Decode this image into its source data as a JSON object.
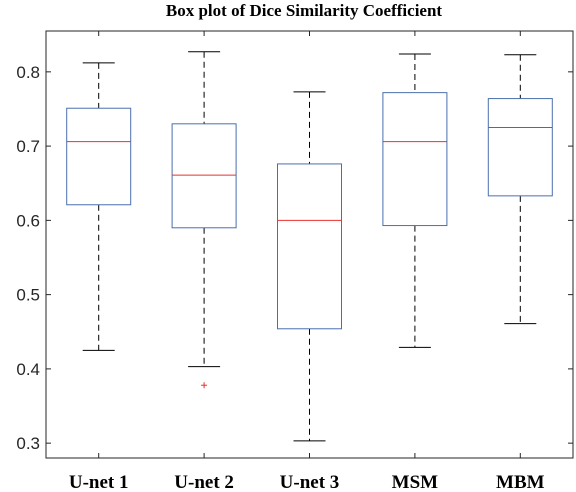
{
  "chart_data": {
    "type": "box",
    "title": "Box plot of Dice Similarity Coefficient",
    "xlabel": "",
    "ylabel": "",
    "ylim": [
      0.28,
      0.855
    ],
    "yticks": [
      0.3,
      0.4,
      0.5,
      0.6,
      0.7,
      0.8
    ],
    "ytick_labels": [
      "0.3",
      "0.4",
      "0.5",
      "0.6",
      "0.7",
      "0.8"
    ],
    "grid": false,
    "categories": [
      "U-net 1",
      "U-net 2",
      "U-net 3",
      "MSM",
      "MBM"
    ],
    "boxes": [
      {
        "name": "U-net 1",
        "min": 0.425,
        "q1": 0.621,
        "median": 0.706,
        "q3": 0.751,
        "max": 0.812,
        "outliers": []
      },
      {
        "name": "U-net 2",
        "min": 0.403,
        "q1": 0.59,
        "median": 0.661,
        "q3": 0.73,
        "max": 0.827,
        "outliers": [
          0.378
        ]
      },
      {
        "name": "U-net 3",
        "min": 0.303,
        "q1": 0.454,
        "median": 0.6,
        "q3": 0.676,
        "max": 0.773,
        "outliers": []
      },
      {
        "name": "MSM",
        "min": 0.429,
        "q1": 0.593,
        "median": 0.706,
        "q3": 0.772,
        "max": 0.824,
        "outliers": []
      },
      {
        "name": "MBM",
        "min": 0.461,
        "q1": 0.633,
        "median": 0.725,
        "q3": 0.764,
        "max": 0.823,
        "outliers": []
      }
    ],
    "colors": {
      "box": "#4a6fad",
      "median": "#e8322e",
      "whisker": "#000000",
      "outlier": "#e8322e",
      "axis": "#262626"
    }
  }
}
